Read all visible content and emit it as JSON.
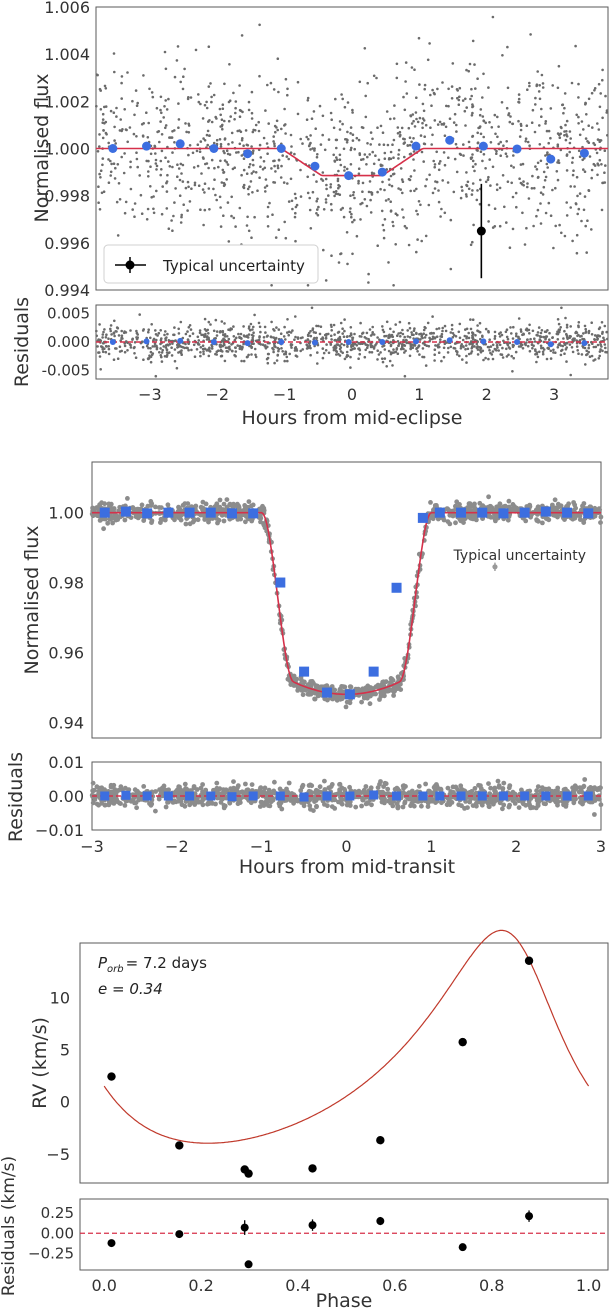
{
  "chart_data": [
    {
      "type": "scatter",
      "id": "eclipse",
      "xlabel": "Hours from mid-eclipse",
      "ylabel": "Normalised flux",
      "residual_ylabel": "Residuals",
      "xlim": [
        -3.8,
        3.8
      ],
      "ylim": [
        0.994,
        1.006
      ],
      "residual_ylim": [
        -0.0065,
        0.0065
      ],
      "xticks": [
        "-3",
        "-2",
        "-1",
        "0",
        "1",
        "2",
        "3"
      ],
      "yticks": [
        "0.994",
        "0.996",
        "0.998",
        "1.000",
        "1.002",
        "1.004",
        "1.006"
      ],
      "residual_yticks": [
        "-0.005",
        "0.000",
        "0.005"
      ],
      "legend": "Typical uncertainty",
      "legend_position": "lower-left",
      "model": {
        "depth": 0.00115,
        "t1": 1.05,
        "t2": 0.45
      },
      "binned": {
        "x": [
          -3.55,
          -3.05,
          -2.55,
          -2.05,
          -1.55,
          -1.05,
          -0.55,
          -0.05,
          0.45,
          0.95,
          1.45,
          1.95,
          2.45,
          2.95,
          3.45
        ],
        "y": [
          1.0,
          1.0001,
          1.0002,
          1.0,
          0.99978,
          1.0,
          0.99925,
          0.99885,
          0.999,
          1.0001,
          1.00035,
          1.0001,
          0.99998,
          0.99955,
          0.9998
        ],
        "residuals": [
          0.0,
          0.0001,
          0.0002,
          0.0,
          -0.0002,
          0.0,
          -0.0001,
          0.0,
          0.0,
          0.0001,
          0.0003,
          0.0001,
          0.0,
          -0.0004,
          -0.0002
        ]
      },
      "uncertainty_point": {
        "x": 1.92,
        "y": 0.9965,
        "err": 0.002
      },
      "colors": {
        "raw": "#6b6b6b",
        "binned": "#3c6ee0",
        "model": "#d6304a"
      }
    },
    {
      "type": "scatter",
      "id": "transit",
      "xlabel": "Hours from mid-transit",
      "ylabel": "Normalised flux",
      "residual_ylabel": "Residuals",
      "xlim": [
        -3,
        3
      ],
      "ylim": [
        0.9355,
        1.0145
      ],
      "residual_ylim": [
        -0.01,
        0.01
      ],
      "xticks": [
        "-3",
        "-2",
        "-1",
        "0",
        "1",
        "2",
        "3"
      ],
      "yticks": [
        "0.94",
        "0.96",
        "0.98",
        "1.00"
      ],
      "residual_yticks": [
        "-0.01",
        "0.00",
        "0.01"
      ],
      "legend": "Typical uncertainty",
      "legend_position": "right",
      "binned": {
        "x": [
          -2.85,
          -2.6,
          -2.35,
          -2.1,
          -1.85,
          -1.6,
          -1.35,
          -1.1,
          -0.78,
          -0.5,
          -0.23,
          0.04,
          0.32,
          0.59,
          0.9,
          1.1,
          1.35,
          1.6,
          1.85,
          2.1,
          2.35,
          2.6,
          2.85
        ],
        "y": [
          1.0,
          1.0003,
          0.9998,
          1.0,
          1.0,
          1.0,
          0.9998,
          0.9998,
          0.98,
          0.9545,
          0.9485,
          0.948,
          0.9545,
          0.9785,
          0.9985,
          1.0,
          1.0,
          1.0,
          0.9998,
          1.0,
          1.0003,
          1.0,
          0.9998
        ],
        "residuals": [
          0.0,
          0.0002,
          0.0,
          0.0,
          0.0,
          0.0,
          -0.0002,
          0.0,
          0.0,
          -0.0003,
          0.0,
          0.0,
          0.0003,
          0.0,
          0.0,
          0.0,
          0.0,
          0.0,
          0.0,
          0.0,
          0.0,
          0.0,
          0.0
        ]
      },
      "uncertainty_point": {
        "x": 1.75,
        "y": 0.9845,
        "err": 0.0012
      },
      "colors": {
        "raw": "#8c8c8c",
        "binned": "#3c6ee0",
        "model": "#d6304a"
      }
    },
    {
      "type": "scatter",
      "id": "rv",
      "xlabel": "Phase",
      "ylabel": "RV (km/s)",
      "residual_ylabel": "Residuals (km/s)",
      "annotation_period": "= 7.2 days",
      "annotation_period_symbol": "P",
      "annotation_period_sub": "orb",
      "annotation_ecc": "e = 0.34",
      "xlim": [
        -0.05,
        1.04
      ],
      "ylim": [
        -7.8,
        15.2
      ],
      "residual_ylim": [
        -0.45,
        0.42
      ],
      "xticks": [
        "0.0",
        "0.2",
        "0.4",
        "0.6",
        "0.8",
        "1.0"
      ],
      "yticks": [
        "-5",
        "0",
        "5",
        "10"
      ],
      "residual_yticks": [
        "-0.25",
        "0.00",
        "0.25"
      ],
      "points": {
        "x": [
          0.015,
          0.155,
          0.29,
          0.298,
          0.43,
          0.57,
          0.74,
          0.877
        ],
        "y": [
          2.4,
          -4.2,
          -6.5,
          -6.9,
          -6.4,
          -3.7,
          5.7,
          13.5
        ],
        "residuals": [
          -0.12,
          -0.01,
          0.07,
          -0.38,
          0.1,
          0.15,
          -0.17,
          0.21
        ],
        "residual_err": [
          0.02,
          0.02,
          0.09,
          0.04,
          0.07,
          0.05,
          0.04,
          0.07
        ]
      },
      "model": {
        "K": 10.2,
        "e": 0.34,
        "omega_deg": 28,
        "gamma": 3.15,
        "tp_phase": 0.857
      },
      "colors": {
        "points": "#000000",
        "model": "#c0392b",
        "zero_line": "#d6304a"
      }
    }
  ]
}
